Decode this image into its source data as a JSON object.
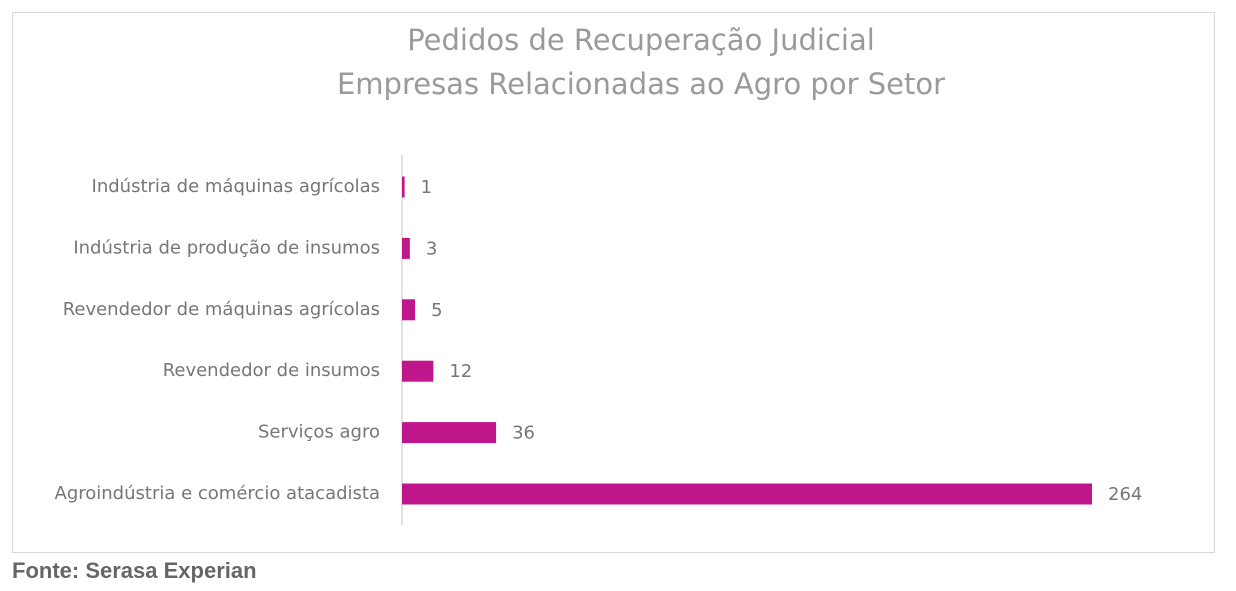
{
  "chart_data": {
    "type": "bar",
    "orientation": "horizontal",
    "title": "Pedidos de Recuperação Judicial",
    "subtitle": "Empresas Relacionadas ao Agro por Setor",
    "categories": [
      "Indústria de máquinas agrícolas",
      "Indústria de produção de insumos",
      "Revendedor de máquinas agrícolas",
      "Revendedor de insumos",
      "Serviços agro",
      "Agroindústria e comércio atacadista"
    ],
    "values": [
      1,
      3,
      5,
      12,
      36,
      264
    ],
    "color": "#c0168c"
  },
  "source": "Fonte: Serasa Experian"
}
